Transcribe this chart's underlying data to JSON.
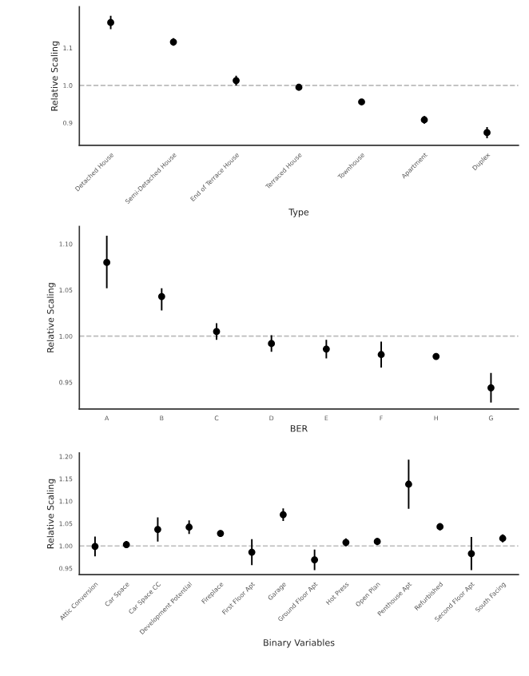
{
  "chart_data": [
    {
      "type": "scatter",
      "xlabel": "Type",
      "ylabel": "Relative Scaling",
      "categories": [
        "Detached House",
        "Semi-Detached House",
        "End of Terrace House",
        "Terraced House",
        "Townhouse",
        "Apartment",
        "Duplex"
      ],
      "series": [
        {
          "color": "#000000",
          "values": [
            1.168,
            1.116,
            1.013,
            0.995,
            0.956,
            0.908,
            0.874
          ],
          "errors": [
            0.018,
            0.01,
            0.013,
            0.008,
            null,
            0.01,
            0.015
          ]
        }
      ],
      "ylim": [
        0.84,
        1.21
      ],
      "yticks": [
        {
          "value": 0.9,
          "label": "0.9"
        },
        {
          "value": 1.0,
          "label": "1.0"
        },
        {
          "value": 1.1,
          "label": "1.1"
        }
      ],
      "grid": false,
      "marker": "circle",
      "ref_lines": [
        {
          "axis": "y",
          "value": 1.0,
          "color": "#bbbbbb",
          "line_style": "dashed"
        }
      ]
    },
    {
      "type": "scatter",
      "xlabel": "BER",
      "ylabel": "Relative Scaling",
      "categories": [
        "A",
        "B",
        "C",
        "D",
        "E",
        "F",
        "H",
        "G"
      ],
      "series": [
        {
          "color": "#000000",
          "values": [
            1.08,
            1.043,
            1.005,
            0.992,
            0.986,
            0.98,
            0.978,
            0.944
          ],
          "errors": [
            [
              1.052,
              1.109
            ],
            [
              1.028,
              1.052
            ],
            0.009,
            0.009,
            0.01,
            0.014,
            null,
            0.016
          ]
        }
      ],
      "ylim": [
        0.921,
        1.119
      ],
      "yticks": [
        {
          "value": 0.95,
          "label": "0.95"
        },
        {
          "value": 1.0,
          "label": "1.00"
        },
        {
          "value": 1.05,
          "label": "1.05"
        },
        {
          "value": 1.1,
          "label": "1.10"
        }
      ],
      "grid": false,
      "marker": "circle",
      "ref_lines": [
        {
          "axis": "y",
          "value": 1.0,
          "color": "#bbbbbb",
          "line_style": "dashed"
        }
      ]
    },
    {
      "type": "scatter",
      "xlabel": "Binary Variables",
      "ylabel": "Relative Scaling",
      "categories": [
        "Attic Conversion",
        "Car Space",
        "Car Space CC",
        "Development Potential",
        "Fireplace",
        "First Floor Apt",
        "Garage",
        "Ground Floor Apt",
        "Hot Press",
        "Open Plan",
        "Penthouse Apt",
        "Refurbished",
        "Second Floor Apt",
        "South Facing"
      ],
      "series": [
        {
          "color": "#000000",
          "values": [
            0.999,
            1.003,
            1.037,
            1.042,
            1.028,
            0.986,
            1.07,
            0.969,
            1.008,
            1.01,
            1.138,
            1.043,
            0.983,
            1.017
          ],
          "errors": [
            0.022,
            0.008,
            0.027,
            0.015,
            0.007,
            0.029,
            0.014,
            0.023,
            0.009,
            0.008,
            0.055,
            0.008,
            [
              0.946,
              1.02
            ],
            0.009
          ]
        }
      ],
      "ylim": [
        0.936,
        1.208
      ],
      "yticks": [
        {
          "value": 0.95,
          "label": "0.95"
        },
        {
          "value": 1.0,
          "label": "1.00"
        },
        {
          "value": 1.05,
          "label": "1.05"
        },
        {
          "value": 1.1,
          "label": "1.10"
        },
        {
          "value": 1.15,
          "label": "1.15"
        },
        {
          "value": 1.2,
          "label": "1.20"
        }
      ],
      "grid": false,
      "marker": "circle",
      "ref_lines": [
        {
          "axis": "y",
          "value": 1.0,
          "color": "#bbbbbb",
          "line_style": "dashed"
        }
      ]
    }
  ]
}
